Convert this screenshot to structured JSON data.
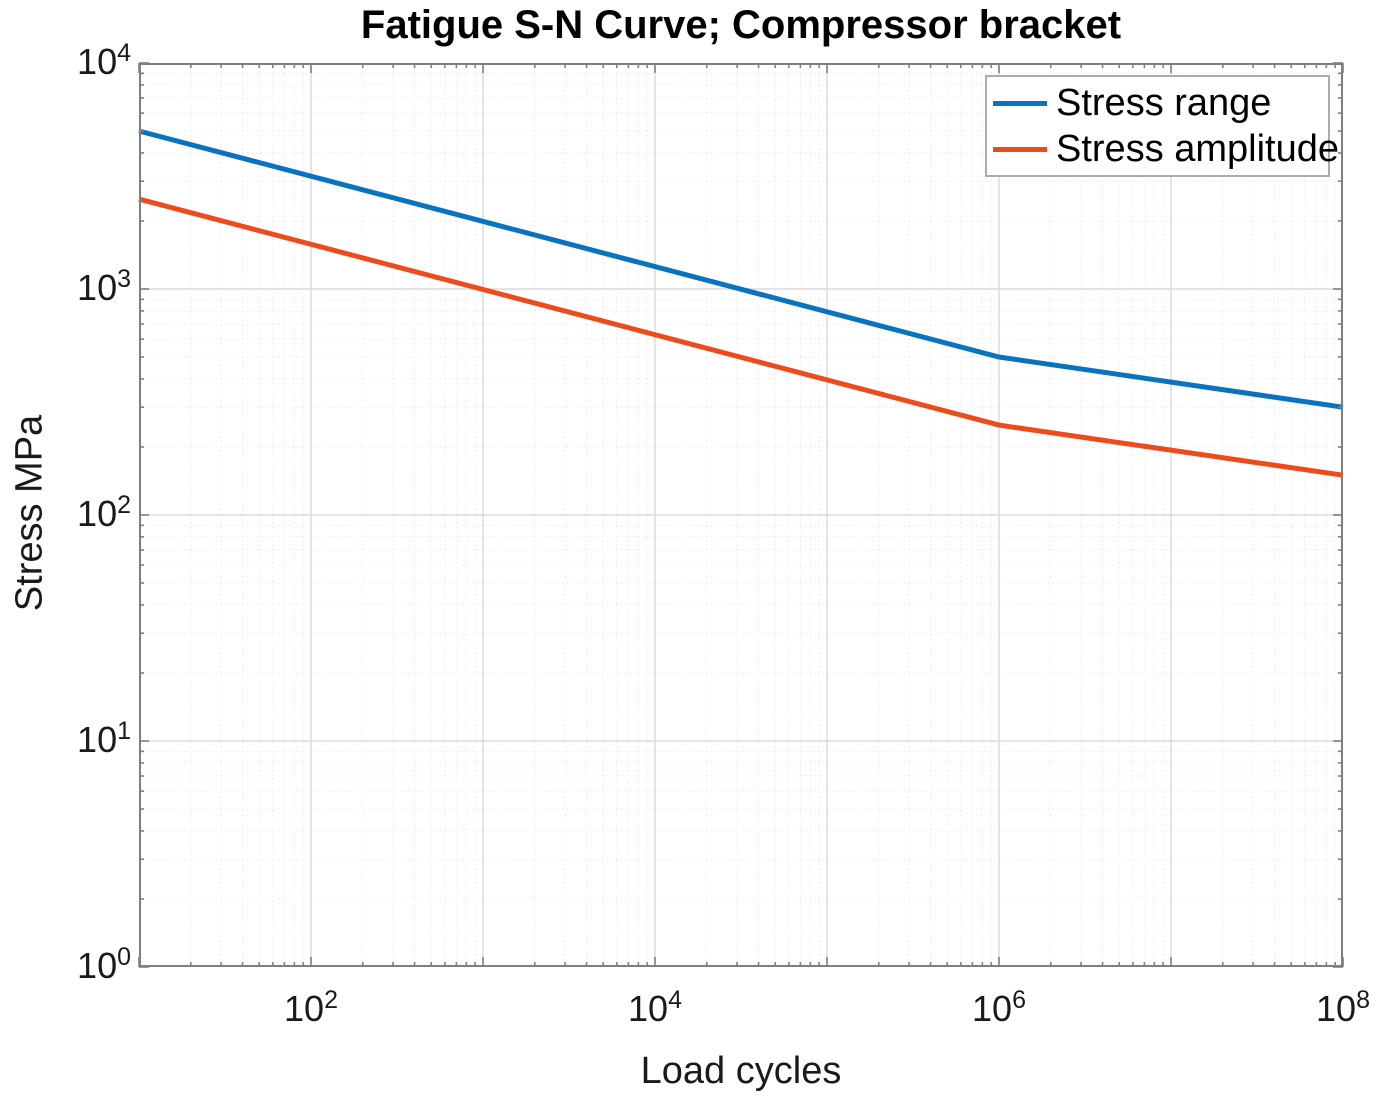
{
  "chart_data": {
    "type": "line",
    "title": "Fatigue S-N Curve; Compressor bracket",
    "xlabel": "Load cycles",
    "ylabel": "Stress MPa",
    "x_scale": "log",
    "y_scale": "log",
    "xlim": [
      10,
      100000000
    ],
    "ylim": [
      1,
      10000
    ],
    "grid": {
      "major": true,
      "minor": true
    },
    "x_ticks": [
      {
        "label": "10^2",
        "mantissa": "10",
        "exponent": "2",
        "value": 100
      },
      {
        "label": "10^4",
        "mantissa": "10",
        "exponent": "4",
        "value": 10000
      },
      {
        "label": "10^6",
        "mantissa": "10",
        "exponent": "6",
        "value": 1000000
      },
      {
        "label": "10^8",
        "mantissa": "10",
        "exponent": "8",
        "value": 100000000
      }
    ],
    "y_ticks": [
      {
        "label": "10^0",
        "mantissa": "10",
        "exponent": "0",
        "value": 1
      },
      {
        "label": "10^1",
        "mantissa": "10",
        "exponent": "1",
        "value": 10
      },
      {
        "label": "10^2",
        "mantissa": "10",
        "exponent": "2",
        "value": 100
      },
      {
        "label": "10^3",
        "mantissa": "10",
        "exponent": "3",
        "value": 1000
      },
      {
        "label": "10^4",
        "mantissa": "10",
        "exponent": "4",
        "value": 10000
      }
    ],
    "legend": {
      "position": "top-right",
      "entries": [
        "Stress range",
        "Stress amplitude"
      ]
    },
    "series": [
      {
        "name": "Stress range",
        "color": "#0a73bf",
        "x": [
          10,
          1000000,
          100000000
        ],
        "y": [
          5000,
          500,
          300
        ]
      },
      {
        "name": "Stress amplitude",
        "color": "#ee4b1c",
        "x": [
          10,
          1000000,
          100000000
        ],
        "y": [
          2500,
          250,
          150
        ]
      }
    ]
  }
}
